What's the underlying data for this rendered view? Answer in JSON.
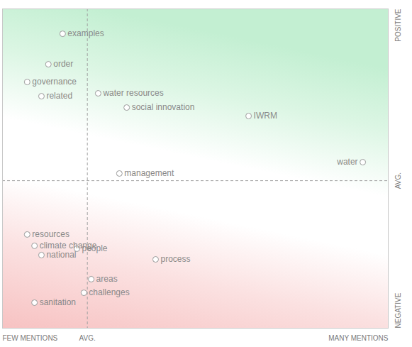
{
  "chart_data": {
    "type": "scatter",
    "xlim": [
      0,
      100
    ],
    "ylim": [
      -100,
      100
    ],
    "xticks": [
      {
        "value": 0,
        "label": "FEW MENTIONS"
      },
      {
        "value": 22,
        "label": "AVG."
      },
      {
        "value": 100,
        "label": "MANY MENTIONS"
      }
    ],
    "yticks": [
      {
        "value": -100,
        "label": "NEGATIVE"
      },
      {
        "value": -7.6,
        "label": "AVG."
      },
      {
        "value": 100,
        "label": "POSITIVE"
      }
    ],
    "grid": true,
    "color": "#9a9a9a",
    "marker": "open circle",
    "points": [
      {
        "label": "examples",
        "x": 15.6,
        "y": 84.4
      },
      {
        "label": "order",
        "x": 11.9,
        "y": 65.3
      },
      {
        "label": "governance",
        "x": 6.4,
        "y": 54.2
      },
      {
        "label": "related",
        "x": 10.1,
        "y": 45.3
      },
      {
        "label": "water resources",
        "x": 24.8,
        "y": 47.1
      },
      {
        "label": "social innovation",
        "x": 32.2,
        "y": 38.2
      },
      {
        "label": "IWRM",
        "x": 63.8,
        "y": 32.9
      },
      {
        "label": "water",
        "x": 93.4,
        "y": 4.0
      },
      {
        "label": "management",
        "x": 30.3,
        "y": -3.1
      },
      {
        "label": "resources",
        "x": 6.4,
        "y": -41.3
      },
      {
        "label": "climate change",
        "x": 8.3,
        "y": -48.4
      },
      {
        "label": "people",
        "x": 19.3,
        "y": -50.2
      },
      {
        "label": "national",
        "x": 10.1,
        "y": -54.2
      },
      {
        "label": "process",
        "x": 39.7,
        "y": -56.9
      },
      {
        "label": "areas",
        "x": 23.0,
        "y": -69.3
      },
      {
        "label": "challenges",
        "x": 21.1,
        "y": -77.8
      },
      {
        "label": "sanitation",
        "x": 8.3,
        "y": -84.0
      }
    ]
  }
}
